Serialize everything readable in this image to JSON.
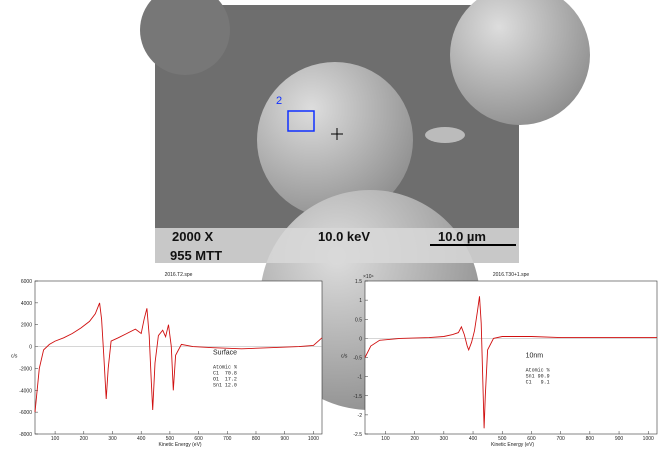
{
  "image": {
    "marker": "2",
    "magnification": "2000 X",
    "voltage": "10.0 keV",
    "scale_bar": "10.0 µm",
    "detector": "955  MTT"
  },
  "chart_data": [
    {
      "type": "line",
      "title": "2016.T2.spe",
      "x_label": "Kinetic Energy (eV)",
      "y_label": "c/s",
      "annotation": "Surface",
      "table_title": "Atomic %",
      "composition": [
        {
          "name": "C1",
          "value": "70.8"
        },
        {
          "name": "O1",
          "value": "17.2"
        },
        {
          "name": "Sn1",
          "value": "12.0"
        }
      ],
      "xlim": [
        30,
        1030
      ],
      "xticks": [
        100,
        200,
        300,
        400,
        500,
        600,
        700,
        800,
        900,
        1000
      ],
      "ylim": [
        -8000,
        6000
      ],
      "yticks": [
        -8000,
        -6000,
        -4000,
        -2000,
        0,
        2000,
        4000,
        6000
      ],
      "series": [
        {
          "color": "#d01010",
          "x": [
            30,
            45,
            60,
            80,
            100,
            130,
            160,
            190,
            220,
            240,
            255,
            262,
            270,
            278,
            285,
            295,
            320,
            350,
            380,
            400,
            410,
            420,
            428,
            435,
            440,
            448,
            460,
            475,
            485,
            495,
            505,
            512,
            520,
            540,
            580,
            650,
            750,
            850,
            950,
            1000,
            1030
          ],
          "values": [
            -6000,
            -2000,
            -300,
            200,
            500,
            800,
            1200,
            1700,
            2300,
            3000,
            4000,
            2500,
            -1000,
            -4800,
            -2000,
            500,
            800,
            1200,
            1600,
            1200,
            2500,
            3500,
            1000,
            -3000,
            -5800,
            -1500,
            1000,
            1500,
            900,
            2000,
            0,
            -4000,
            -800,
            200,
            0,
            -100,
            -200,
            -100,
            0,
            100,
            800
          ]
        }
      ]
    },
    {
      "type": "line",
      "title": "2016.T30+1.spe",
      "x_label": "Kinetic Energy (eV)",
      "y_label": "c/s",
      "y_multiplier": "×10⁴",
      "annotation": "10nm",
      "table_title": "Atomic %",
      "composition": [
        {
          "name": "Sn1",
          "value": "90.9"
        },
        {
          "name": "C1",
          "value": "9.1"
        }
      ],
      "xlim": [
        30,
        1030
      ],
      "xticks": [
        100,
        200,
        300,
        400,
        500,
        600,
        700,
        800,
        900,
        1000
      ],
      "ylim": [
        -2.5,
        1.5
      ],
      "yticks": [
        -2.5,
        -2,
        -1.5,
        -1,
        -0.5,
        0,
        0.5,
        1,
        1.5
      ],
      "series": [
        {
          "color": "#d01010",
          "x": [
            30,
            50,
            80,
            150,
            250,
            300,
            330,
            350,
            360,
            370,
            380,
            385,
            395,
            405,
            415,
            422,
            428,
            433,
            438,
            442,
            450,
            470,
            500,
            600,
            700,
            800,
            900,
            1000,
            1030
          ],
          "values": [
            -0.5,
            -0.2,
            -0.05,
            0,
            0.02,
            0.05,
            0.1,
            0.15,
            0.3,
            0.1,
            -0.2,
            -0.3,
            -0.1,
            0.2,
            0.7,
            1.1,
            0.4,
            -1.0,
            -2.35,
            -1.5,
            -0.3,
            0,
            0.05,
            0.05,
            0.02,
            0.02,
            0.02,
            0.02,
            0.02
          ]
        }
      ]
    }
  ]
}
